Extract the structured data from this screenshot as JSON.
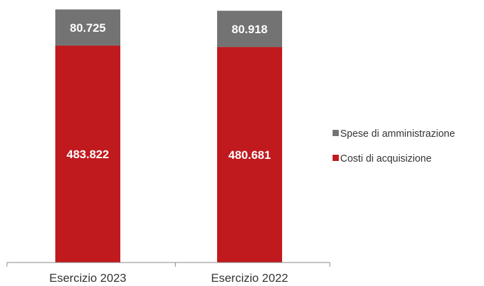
{
  "chart_data": {
    "type": "bar",
    "stacked": true,
    "categories": [
      "Esercizio 2023",
      "Esercizio 2022"
    ],
    "series": [
      {
        "name": "Costi di acquisizione",
        "values": [
          483822,
          480681
        ],
        "labels": [
          "483.822",
          "480.681"
        ],
        "color": "#c0191e"
      },
      {
        "name": "Spese di amministrazione",
        "values": [
          80725,
          80918
        ],
        "labels": [
          "80.725",
          "80.918"
        ],
        "color": "#737373"
      }
    ],
    "legend": {
      "position": "right",
      "order": [
        "Spese di amministrazione",
        "Costi di acquisizione"
      ]
    },
    "ylim": [
      0,
      564000
    ],
    "grid": false,
    "title": "",
    "xlabel": "",
    "ylabel": ""
  }
}
